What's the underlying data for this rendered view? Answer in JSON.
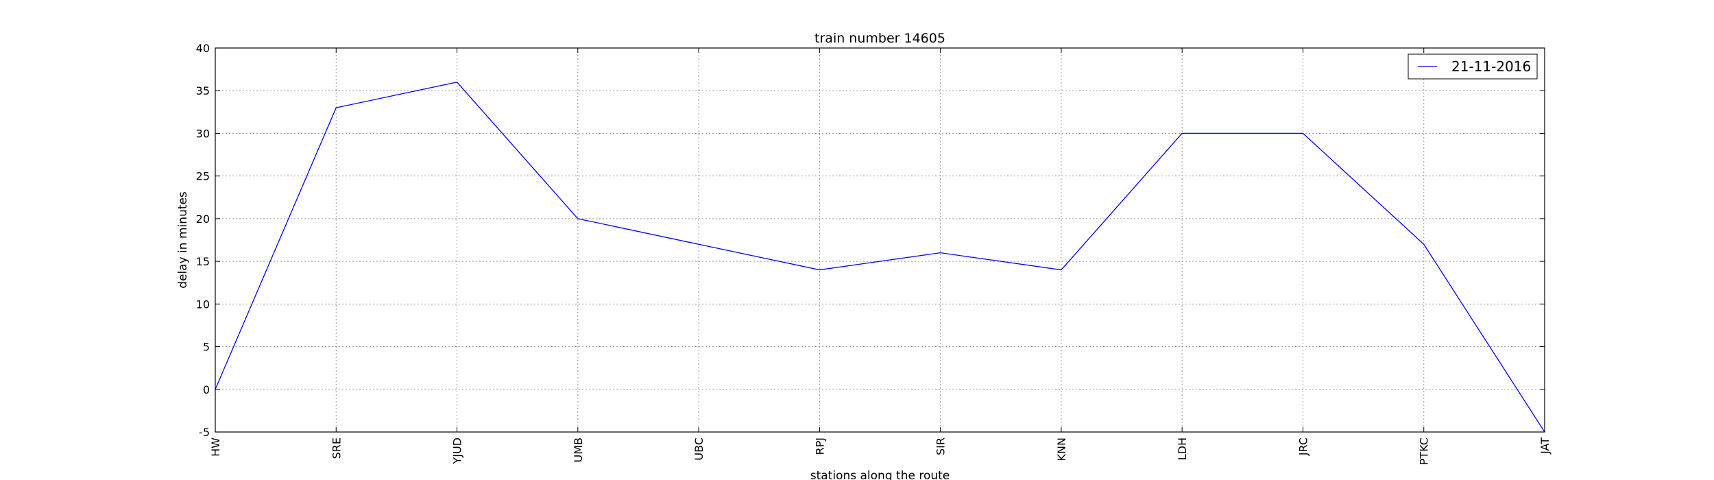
{
  "chart_data": {
    "type": "line",
    "title": "train number 14605",
    "xlabel": "stations along the route",
    "ylabel": "delay in minutes",
    "categories": [
      "HW",
      "SRE",
      "YJUD",
      "UMB",
      "UBC",
      "RPJ",
      "SIR",
      "KNN",
      "LDH",
      "JRC",
      "PTKC",
      "JAT"
    ],
    "series": [
      {
        "name": "21-11-2016",
        "values": [
          0,
          33,
          36,
          20,
          17,
          14,
          16,
          14,
          30,
          30,
          17,
          -5
        ],
        "color": "#0000ff"
      }
    ],
    "ylim": [
      -5,
      40
    ],
    "yticks": [
      -5,
      0,
      5,
      10,
      15,
      20,
      25,
      30,
      35,
      40
    ],
    "grid": true,
    "legend_position": "top-right"
  }
}
